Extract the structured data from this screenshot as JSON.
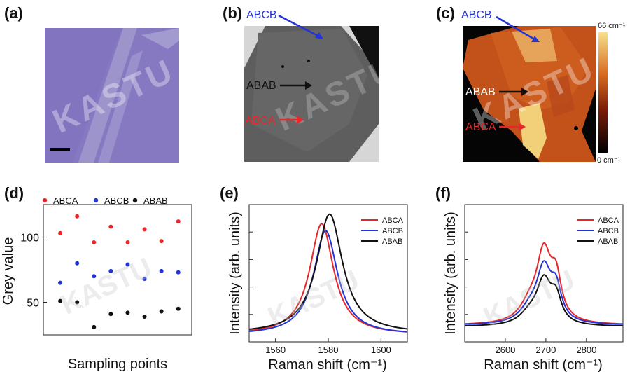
{
  "panels": {
    "a": "(a)",
    "b": "(b)",
    "c": "(c)",
    "d": "(d)",
    "e": "(e)",
    "f": "(f)"
  },
  "watermark": "KASTU",
  "colors": {
    "ABCA": "#e8272a",
    "ABCB": "#2333d6",
    "ABAB": "#111111",
    "optical_bg": "#8a7fc0"
  },
  "image_b": {
    "labels": [
      "ABCB",
      "ABAB",
      "ABCA"
    ]
  },
  "image_c": {
    "labels": [
      "ABCB",
      "ABAB",
      "ABCA"
    ],
    "colorbar_max": "66 cm⁻¹",
    "colorbar_min": "0 cm⁻¹"
  },
  "chart_data": [
    {
      "id": "d",
      "type": "scatter",
      "title": "",
      "xlabel": "Sampling points",
      "ylabel": "Grey value",
      "ylim": [
        25,
        125
      ],
      "yticks": [
        50,
        100
      ],
      "legend": [
        "ABCA",
        "ABCB",
        "ABAB"
      ],
      "legend_placement": "top",
      "series": [
        {
          "name": "ABCA",
          "x": [
            1,
            2,
            3,
            4,
            5,
            6,
            7,
            8
          ],
          "values": [
            103,
            116,
            96,
            108,
            96,
            106,
            97,
            112
          ]
        },
        {
          "name": "ABCB",
          "x": [
            1,
            2,
            3,
            4,
            5,
            6,
            7,
            8
          ],
          "values": [
            65,
            80,
            70,
            74,
            79,
            68,
            74,
            73
          ]
        },
        {
          "name": "ABAB",
          "x": [
            1,
            2,
            3,
            4,
            5,
            6,
            7,
            8
          ],
          "values": [
            51,
            50,
            31,
            41,
            42,
            39,
            43,
            45
          ]
        }
      ]
    },
    {
      "id": "e",
      "type": "line",
      "title": "",
      "xlabel": "Raman shift (cm⁻¹)",
      "ylabel": "Intensity (arb. units)",
      "xlim": [
        1550,
        1610
      ],
      "ylim": [
        0,
        1
      ],
      "xticks": [
        1560,
        1580,
        1600
      ],
      "legend": [
        "ABCA",
        "ABCB",
        "ABAB"
      ],
      "legend_placement": "top-right",
      "series": [
        {
          "name": "ABCA",
          "shape": "lorentz",
          "center": 1577.5,
          "width": 5.5,
          "peak": 0.86,
          "baseline": 0.05
        },
        {
          "name": "ABCB",
          "shape": "lorentz",
          "center": 1579.0,
          "width": 5.5,
          "peak": 0.81,
          "baseline": 0.05
        },
        {
          "name": "ABAB",
          "shape": "lorentz",
          "center": 1580.5,
          "width": 6.0,
          "peak": 0.93,
          "baseline": 0.06
        }
      ]
    },
    {
      "id": "f",
      "type": "line",
      "title": "",
      "xlabel": "Raman shift (cm⁻¹)",
      "ylabel": "Intensity (arb. units)",
      "xlim": [
        2500,
        2890
      ],
      "ylim": [
        0,
        1
      ],
      "xticks": [
        2600,
        2700,
        2800
      ],
      "legend": [
        "ABCA",
        "ABCB",
        "ABAB"
      ],
      "legend_placement": "top-right",
      "series": [
        {
          "name": "ABCA",
          "shape": "2d-band",
          "peak": 0.77,
          "baseline": 0.12
        },
        {
          "name": "ABCB",
          "shape": "2d-band",
          "peak": 0.63,
          "baseline": 0.12
        },
        {
          "name": "ABAB",
          "shape": "2d-band",
          "peak": 0.52,
          "baseline": 0.11
        }
      ]
    }
  ]
}
